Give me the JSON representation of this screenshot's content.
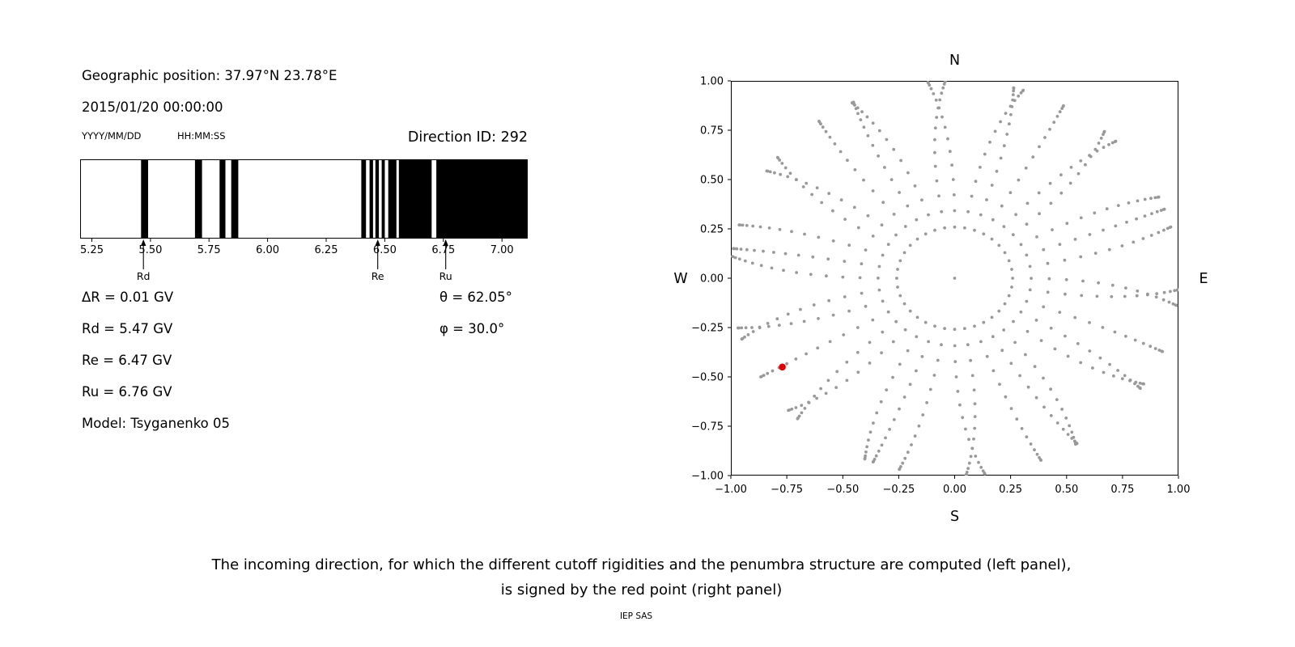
{
  "header": {
    "geo_position": "Geographic position: 37.97°N 23.78°E",
    "datetime": "2015/01/20 00:00:00",
    "date_format_hint": "YYYY/MM/DD",
    "time_format_hint": "HH:MM:SS",
    "direction_id": "Direction ID: 292"
  },
  "cutoff_values": {
    "delta_r": "ΔR = 0.01 GV",
    "rd": "Rd = 5.47 GV",
    "re": "Re = 6.47 GV",
    "ru": "Ru = 6.76 GV",
    "model": "Model: Tsyganenko 05",
    "theta": "θ = 62.05°",
    "phi": "φ = 30.0°"
  },
  "caption": {
    "line1": "The incoming direction, for which the different cutoff rigidities and the penumbra structure are computed (left panel),",
    "line2": "is signed by the red point (right panel)",
    "credit": "IEP SAS"
  },
  "chart_data": [
    {
      "name": "penumbra-structure",
      "type": "bar",
      "title": "",
      "xlabel": "",
      "ylabel": "",
      "xlim": [
        5.2,
        7.11
      ],
      "xtick_values": [
        5.25,
        5.5,
        5.75,
        6.0,
        6.25,
        6.5,
        6.75,
        7.0
      ],
      "xtick_labels": [
        "5.25",
        "5.50",
        "5.75",
        "6.00",
        "6.25",
        "6.50",
        "6.75",
        "7.00"
      ],
      "bar_color": "#000000",
      "allowed_bands_gv": [
        [
          5.46,
          5.49
        ],
        [
          5.69,
          5.72
        ],
        [
          5.795,
          5.82
        ],
        [
          5.845,
          5.875
        ],
        [
          6.4,
          6.42
        ],
        [
          6.435,
          6.45
        ],
        [
          6.46,
          6.475
        ],
        [
          6.487,
          6.5
        ],
        [
          6.515,
          6.55
        ],
        [
          6.56,
          6.7
        ],
        [
          6.72,
          7.11
        ]
      ],
      "markers": [
        {
          "label": "Rd",
          "value_gv": 5.47
        },
        {
          "label": "Re",
          "value_gv": 6.47
        },
        {
          "label": "Ru",
          "value_gv": 6.76
        }
      ]
    },
    {
      "name": "incoming-directions",
      "type": "scatter",
      "title": "",
      "xlabel": "",
      "ylabel": "",
      "xlim": [
        -1,
        1
      ],
      "ylim": [
        -1,
        1
      ],
      "xtick_values": [
        -1,
        -0.75,
        -0.5,
        -0.25,
        0,
        0.25,
        0.5,
        0.75,
        1
      ],
      "xtick_labels": [
        "−1.00",
        "−0.75",
        "−0.50",
        "−0.25",
        "0.00",
        "0.25",
        "0.50",
        "0.75",
        "1.00"
      ],
      "ytick_values": [
        -1,
        -0.75,
        -0.5,
        -0.25,
        0,
        0.25,
        0.5,
        0.75,
        1
      ],
      "ytick_labels": [
        "−1.00",
        "−0.75",
        "−0.50",
        "−0.25",
        "0.00",
        "0.25",
        "0.50",
        "0.75",
        "1.00"
      ],
      "compass": {
        "north": "N",
        "south": "S",
        "east": "E",
        "west": "W"
      },
      "dot_color": "#999999",
      "direction_grid": {
        "azimuth_start_deg": 0,
        "azimuth_step_deg": 10,
        "azimuth_count": 36,
        "zenith_start_deg": 15,
        "zenith_step_deg": 5,
        "zenith_end_deg": 90,
        "radius_rule": "sin(zenith)",
        "center_dot": true,
        "curvature_max_deg": 8
      },
      "selected_point": {
        "x": -0.77,
        "y": -0.45,
        "color": "#e00000"
      }
    }
  ]
}
